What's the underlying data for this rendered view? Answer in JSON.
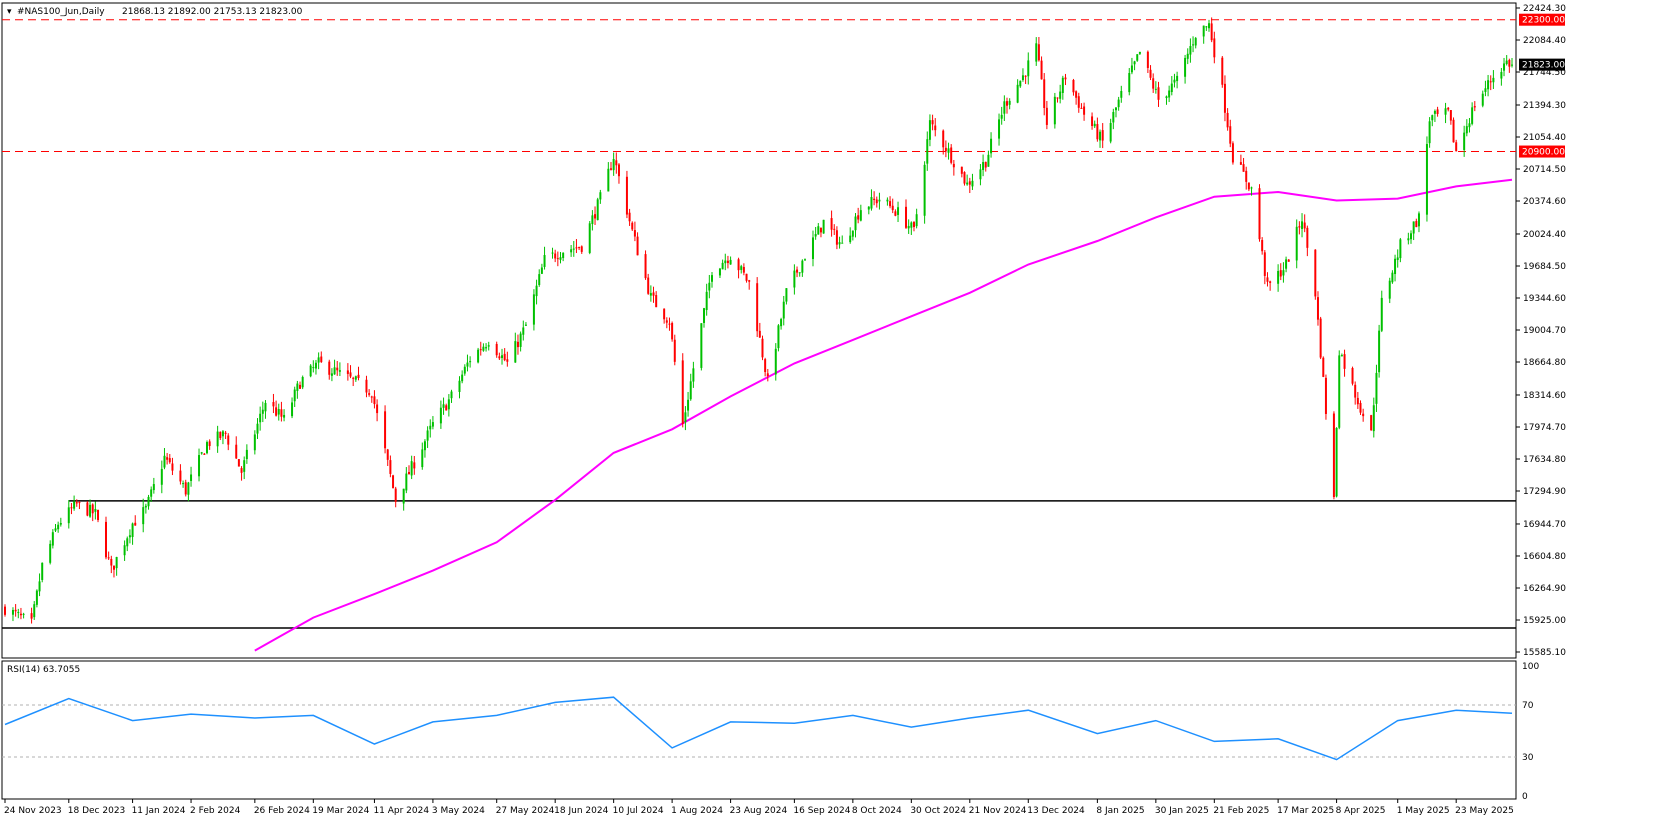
{
  "header": {
    "symbol": "#NAS100_Jun,Daily",
    "ohlc": "21868.13 21892.00 21753.13 21823.00"
  },
  "colors": {
    "up": "#00c000",
    "down": "#ff0000",
    "ma": "#ff00ff",
    "rsi": "#1e90ff",
    "level": "#ff0000",
    "support": "#000000",
    "price_tag_bg": "#000000"
  },
  "price_axis": {
    "ticks": [
      "22424.30",
      "22084.40",
      "21744.50",
      "21394.30",
      "21054.40",
      "20714.50",
      "20374.60",
      "20024.40",
      "19684.50",
      "19344.60",
      "19004.70",
      "18664.80",
      "18314.60",
      "17974.70",
      "17634.80",
      "17294.90",
      "16944.70",
      "16604.80",
      "16264.90",
      "15925.00",
      "15585.10"
    ],
    "tags": {
      "resistance": "22300.00",
      "current": "21823.00",
      "support_level": "20900.00"
    }
  },
  "time_axis": {
    "labels": [
      "24 Nov 2023",
      "18 Dec 2023",
      "11 Jan 2024",
      "2 Feb 2024",
      "26 Feb 2024",
      "19 Mar 2024",
      "11 Apr 2024",
      "3 May 2024",
      "27 May 2024",
      "18 Jun 2024",
      "10 Jul 2024",
      "1 Aug 2024",
      "23 Aug 2024",
      "16 Sep 2024",
      "8 Oct 2024",
      "30 Oct 2024",
      "21 Nov 2024",
      "13 Dec 2024",
      "8 Jan 2025",
      "30 Jan 2025",
      "21 Feb 2025",
      "17 Mar 2025",
      "8 Apr 2025",
      "1 May 2025",
      "23 May 2025"
    ]
  },
  "rsi_panel": {
    "label": "RSI(14) 63.7055",
    "ticks": [
      "100",
      "70",
      "30",
      "0"
    ]
  },
  "chart_data": {
    "type": "candlestick",
    "title": "#NAS100_Jun,Daily",
    "y_range": [
      15585.1,
      22424.3
    ],
    "horizontal_levels": [
      {
        "value": 22300,
        "style": "dashed",
        "color": "#ff0000"
      },
      {
        "value": 20900,
        "style": "dashed",
        "color": "#ff0000"
      },
      {
        "value": 17190,
        "style": "solid",
        "color": "#000000",
        "x_start": "18 Dec 2023"
      },
      {
        "value": 15840,
        "style": "solid",
        "color": "#000000"
      }
    ],
    "price_path": [
      {
        "date": "24 Nov 2023",
        "close": 16050
      },
      {
        "date": "4 Dec 2023",
        "close": 15880
      },
      {
        "date": "8 Dec 2023",
        "close": 16500
      },
      {
        "date": "14 Dec 2023",
        "close": 16950
      },
      {
        "date": "21 Dec 2023",
        "close": 17150
      },
      {
        "date": "28 Dec 2023",
        "close": 17050
      },
      {
        "date": "3 Jan 2024",
        "close": 16450
      },
      {
        "date": "11 Jan 2024",
        "close": 16950
      },
      {
        "date": "16 Jan 2024",
        "close": 17100
      },
      {
        "date": "23 Jan 2024",
        "close": 17650
      },
      {
        "date": "31 Jan 2024",
        "close": 17300
      },
      {
        "date": "8 Feb 2024",
        "close": 17800
      },
      {
        "date": "15 Feb 2024",
        "close": 17900
      },
      {
        "date": "21 Feb 2024",
        "close": 17500
      },
      {
        "date": "1 Mar 2024",
        "close": 18250
      },
      {
        "date": "8 Mar 2024",
        "close": 18050
      },
      {
        "date": "14 Mar 2024",
        "close": 18450
      },
      {
        "date": "21 Mar 2024",
        "close": 18650
      },
      {
        "date": "4 Apr 2024",
        "close": 18450
      },
      {
        "date": "10 Apr 2024",
        "close": 18350
      },
      {
        "date": "19 Apr 2024",
        "close": 17200
      },
      {
        "date": "26 Apr 2024",
        "close": 17600
      },
      {
        "date": "3 May 2024",
        "close": 18000
      },
      {
        "date": "10 May 2024",
        "close": 18300
      },
      {
        "date": "17 May 2024",
        "close": 18700
      },
      {
        "date": "24 May 2024",
        "close": 18900
      },
      {
        "date": "31 May 2024",
        "close": 18650
      },
      {
        "date": "7 Jun 2024",
        "close": 19050
      },
      {
        "date": "14 Jun 2024",
        "close": 19750
      },
      {
        "date": "21 Jun 2024",
        "close": 19850
      },
      {
        "date": "28 Jun 2024",
        "close": 19900
      },
      {
        "date": "5 Jul 2024",
        "close": 20400
      },
      {
        "date": "10 Jul 2024",
        "close": 20850
      },
      {
        "date": "17 Jul 2024",
        "close": 20050
      },
      {
        "date": "24 Jul 2024",
        "close": 19350
      },
      {
        "date": "31 Jul 2024",
        "close": 19100
      },
      {
        "date": "5 Aug 2024",
        "close": 18000
      },
      {
        "date": "9 Aug 2024",
        "close": 18600
      },
      {
        "date": "16 Aug 2024",
        "close": 19650
      },
      {
        "date": "23 Aug 2024",
        "close": 19800
      },
      {
        "date": "30 Aug 2024",
        "close": 19500
      },
      {
        "date": "6 Sep 2024",
        "close": 18450
      },
      {
        "date": "13 Sep 2024",
        "close": 19400
      },
      {
        "date": "20 Sep 2024",
        "close": 19800
      },
      {
        "date": "27 Sep 2024",
        "close": 20150
      },
      {
        "date": "4 Oct 2024",
        "close": 19900
      },
      {
        "date": "11 Oct 2024",
        "close": 20300
      },
      {
        "date": "18 Oct 2024",
        "close": 20400
      },
      {
        "date": "25 Oct 2024",
        "close": 20250
      },
      {
        "date": "31 Oct 2024",
        "close": 20050
      },
      {
        "date": "6 Nov 2024",
        "close": 21200
      },
      {
        "date": "13 Nov 2024",
        "close": 20900
      },
      {
        "date": "20 Nov 2024",
        "close": 20550
      },
      {
        "date": "27 Nov 2024",
        "close": 20800
      },
      {
        "date": "4 Dec 2024",
        "close": 21400
      },
      {
        "date": "11 Dec 2024",
        "close": 21700
      },
      {
        "date": "16 Dec 2024",
        "close": 22000
      },
      {
        "date": "20 Dec 2024",
        "close": 21200
      },
      {
        "date": "27 Dec 2024",
        "close": 21700
      },
      {
        "date": "3 Jan 2025",
        "close": 21300
      },
      {
        "date": "10 Jan 2025",
        "close": 21000
      },
      {
        "date": "17 Jan 2025",
        "close": 21500
      },
      {
        "date": "24 Jan 2025",
        "close": 21950
      },
      {
        "date": "31 Jan 2025",
        "close": 21450
      },
      {
        "date": "7 Feb 2025",
        "close": 21650
      },
      {
        "date": "14 Feb 2025",
        "close": 22150
      },
      {
        "date": "19 Feb 2025",
        "close": 22250
      },
      {
        "date": "24 Feb 2025",
        "close": 21550
      },
      {
        "date": "28 Feb 2025",
        "close": 20850
      },
      {
        "date": "7 Mar 2025",
        "close": 20500
      },
      {
        "date": "13 Mar 2025",
        "close": 19450
      },
      {
        "date": "20 Mar 2025",
        "close": 19700
      },
      {
        "date": "26 Mar 2025",
        "close": 20200
      },
      {
        "date": "31 Mar 2025",
        "close": 19400
      },
      {
        "date": "4 Apr 2025",
        "close": 18150
      },
      {
        "date": "7 Apr 2025",
        "close": 17200
      },
      {
        "date": "9 Apr 2025",
        "close": 18800
      },
      {
        "date": "14 Apr 2025",
        "close": 18400
      },
      {
        "date": "21 Apr 2025",
        "close": 17900
      },
      {
        "date": "25 Apr 2025",
        "close": 19300
      },
      {
        "date": "2 May 2025",
        "close": 19900
      },
      {
        "date": "9 May 2025",
        "close": 20200
      },
      {
        "date": "13 May 2025",
        "close": 21250
      },
      {
        "date": "20 May 2025",
        "close": 21300
      },
      {
        "date": "23 May 2025",
        "close": 20900
      },
      {
        "date": "30 May 2025",
        "close": 21400
      },
      {
        "date": "6 Jun 2025",
        "close": 21700
      },
      {
        "date": "11 Jun 2025",
        "close": 21850
      },
      {
        "date": "13 Jun 2025",
        "close": 21823
      }
    ],
    "moving_average": [
      {
        "date": "26 Feb 2024",
        "value": 15600
      },
      {
        "date": "19 Mar 2024",
        "value": 15950
      },
      {
        "date": "11 Apr 2024",
        "value": 16200
      },
      {
        "date": "3 May 2024",
        "value": 16450
      },
      {
        "date": "27 May 2024",
        "value": 16750
      },
      {
        "date": "18 Jun 2024",
        "value": 17200
      },
      {
        "date": "10 Jul 2024",
        "value": 17700
      },
      {
        "date": "1 Aug 2024",
        "value": 17950
      },
      {
        "date": "23 Aug 2024",
        "value": 18300
      },
      {
        "date": "16 Sep 2024",
        "value": 18650
      },
      {
        "date": "8 Oct 2024",
        "value": 18900
      },
      {
        "date": "30 Oct 2024",
        "value": 19150
      },
      {
        "date": "21 Nov 2024",
        "value": 19400
      },
      {
        "date": "13 Dec 2024",
        "value": 19700
      },
      {
        "date": "8 Jan 2025",
        "value": 19950
      },
      {
        "date": "30 Jan 2025",
        "value": 20200
      },
      {
        "date": "21 Feb 2025",
        "value": 20420
      },
      {
        "date": "17 Mar 2025",
        "value": 20470
      },
      {
        "date": "8 Apr 2025",
        "value": 20380
      },
      {
        "date": "1 May 2025",
        "value": 20400
      },
      {
        "date": "23 May 2025",
        "value": 20530
      },
      {
        "date": "13 Jun 2025",
        "value": 20600
      }
    ],
    "rsi": [
      {
        "date": "24 Nov 2023",
        "value": 55
      },
      {
        "date": "18 Dec 2023",
        "value": 75
      },
      {
        "date": "11 Jan 2024",
        "value": 58
      },
      {
        "date": "2 Feb 2024",
        "value": 63
      },
      {
        "date": "26 Feb 2024",
        "value": 60
      },
      {
        "date": "19 Mar 2024",
        "value": 62
      },
      {
        "date": "11 Apr 2024",
        "value": 40
      },
      {
        "date": "3 May 2024",
        "value": 57
      },
      {
        "date": "27 May 2024",
        "value": 62
      },
      {
        "date": "18 Jun 2024",
        "value": 72
      },
      {
        "date": "10 Jul 2024",
        "value": 76
      },
      {
        "date": "1 Aug 2024",
        "value": 37
      },
      {
        "date": "23 Aug 2024",
        "value": 57
      },
      {
        "date": "16 Sep 2024",
        "value": 56
      },
      {
        "date": "8 Oct 2024",
        "value": 62
      },
      {
        "date": "30 Oct 2024",
        "value": 53
      },
      {
        "date": "21 Nov 2024",
        "value": 60
      },
      {
        "date": "13 Dec 2024",
        "value": 66
      },
      {
        "date": "8 Jan 2025",
        "value": 48
      },
      {
        "date": "30 Jan 2025",
        "value": 58
      },
      {
        "date": "21 Feb 2025",
        "value": 42
      },
      {
        "date": "17 Mar 2025",
        "value": 44
      },
      {
        "date": "8 Apr 2025",
        "value": 28
      },
      {
        "date": "1 May 2025",
        "value": 58
      },
      {
        "date": "23 May 2025",
        "value": 66
      },
      {
        "date": "13 Jun 2025",
        "value": 63.7
      }
    ]
  }
}
